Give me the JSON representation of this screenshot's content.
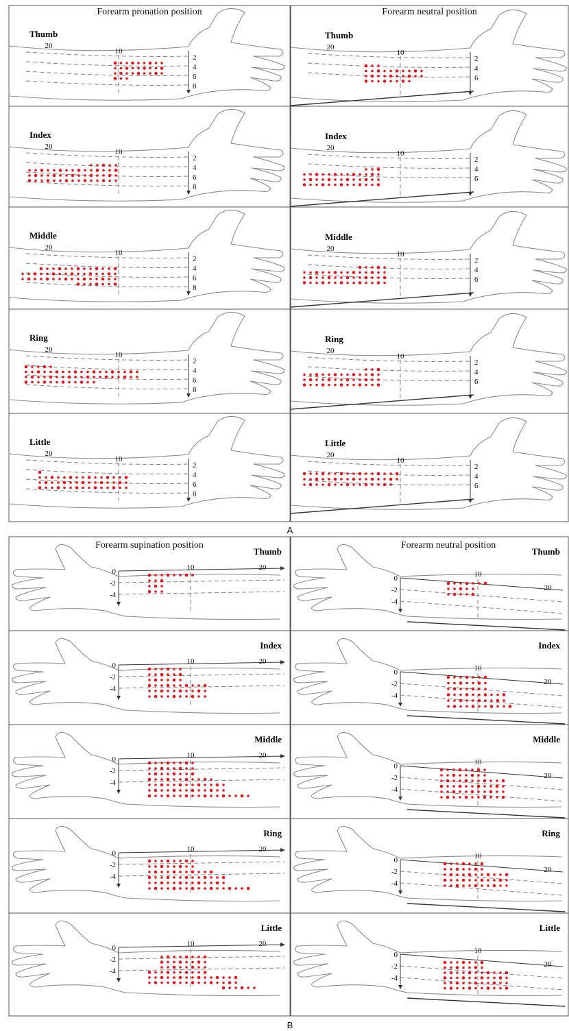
{
  "section_a": {
    "label": "A",
    "col_titles": [
      "Forearm pronation position",
      "Forearm neutral position"
    ],
    "ticks_left": {
      "x_top": [
        "20",
        "10"
      ],
      "y_right": [
        "2",
        "4",
        "6",
        "8"
      ]
    },
    "ticks_right": {
      "x_top": [
        "20",
        "10"
      ],
      "y_right": [
        "2",
        "4",
        "6"
      ]
    },
    "fingers": [
      "Thumb",
      "Index",
      "Middle",
      "Ring",
      "Little"
    ]
  },
  "section_b": {
    "label": "B",
    "col_titles": [
      "Forearm supination position",
      "Forearm neutral position"
    ],
    "ticks": {
      "x_top": [
        "10",
        "20"
      ],
      "y_left": [
        "0",
        "-2",
        "-4"
      ]
    },
    "fingers": [
      "Thumb",
      "Index",
      "Middle",
      "Ring",
      "Little"
    ]
  },
  "colors": {
    "dot": "#e8141a",
    "outline": "#8a8a8a",
    "frame": "#555555"
  }
}
